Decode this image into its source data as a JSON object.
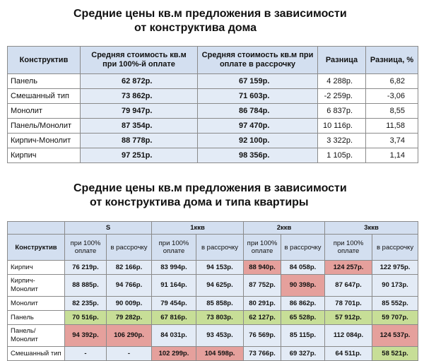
{
  "title1": {
    "line1": "Средние цены кв.м предложения в зависимости",
    "line2": "от конструктива дома"
  },
  "table1": {
    "headers": [
      "Конструктив",
      "Средняя стоимость кв.м при 100%-й оплате",
      "Средняя стоимость кв.м при оплате в рассрочку",
      "Разница",
      "Разница, %"
    ],
    "rows": [
      [
        "Панель",
        "62 872р.",
        "67 159р.",
        "4 288р.",
        "6,82"
      ],
      [
        "Смешанный тип",
        "73 862р.",
        "71 603р.",
        "-2 259р.",
        "-3,06"
      ],
      [
        "Монолит",
        "79 947р.",
        "86 784р.",
        "6 837р.",
        "8,55"
      ],
      [
        "Панель/Монолит",
        "87 354р.",
        "97 470р.",
        "10 116р.",
        "11,58"
      ],
      [
        "Кирпич-Монолит",
        "88 778р.",
        "92 100р.",
        "3 322р.",
        "3,74"
      ],
      [
        "Кирпич",
        "97 251р.",
        "98 356р.",
        "1 105р.",
        "1,14"
      ]
    ]
  },
  "title2": {
    "line1": "Средние цены кв.м предложения в зависимости",
    "line2": "от конструктива дома и типа квартиры"
  },
  "table2": {
    "groups": [
      "S",
      "1ккв",
      "2ккв",
      "3ккв"
    ],
    "first_header": "Конструктив",
    "subheaders": [
      "при 100% оплате",
      "в рассрочку",
      "при 100% оплате",
      "в рассрочку",
      "при 100% оплате",
      "в рассрочку",
      "при 100% оплате",
      "в рассрочку"
    ],
    "rows": [
      [
        "Кирпич",
        "76 219р.",
        "82 166р.",
        "83 994р.",
        "94 153р.",
        "88 940р.",
        "84 058р.",
        "124 257р.",
        "122 975р."
      ],
      [
        "Кирпич-Монолит",
        "88 885р.",
        "94 766р.",
        "91 164р.",
        "94 625р.",
        "87 752р.",
        "90 398р.",
        "87 647р.",
        "90 173р."
      ],
      [
        "Монолит",
        "82 235р.",
        "90 009р.",
        "79 454р.",
        "85 858р.",
        "80 291р.",
        "86 862р.",
        "78 701р.",
        "85 552р."
      ],
      [
        "Панель",
        "70 516р.",
        "79 282р.",
        "67 816р.",
        "73 803р.",
        "62 127р.",
        "65 528р.",
        "57 912р.",
        "59 707р."
      ],
      [
        "Панель/ Монолит",
        "94 392р.",
        "106 290р.",
        "84 031р.",
        "93 453р.",
        "76 569р.",
        "85 115р.",
        "112 084р.",
        "124 537р."
      ],
      [
        "Смешанный тип",
        "-",
        "-",
        "102 299р.",
        "104 598р.",
        "73 766р.",
        "69 327р.",
        "64 511р.",
        "58 521р."
      ]
    ],
    "highlight": {
      "red": [
        [
          0,
          5
        ],
        [
          0,
          7
        ],
        [
          1,
          6
        ],
        [
          4,
          1
        ],
        [
          4,
          2
        ],
        [
          4,
          8
        ],
        [
          5,
          3
        ],
        [
          5,
          4
        ]
      ],
      "green": [
        [
          3,
          1
        ],
        [
          3,
          2
        ],
        [
          3,
          3
        ],
        [
          3,
          4
        ],
        [
          3,
          5
        ],
        [
          3,
          6
        ],
        [
          3,
          7
        ],
        [
          3,
          8
        ],
        [
          5,
          8
        ]
      ]
    },
    "colors": {
      "red": "#e5a09c",
      "green": "#c7de97",
      "header": "#d3dff0",
      "cell": "#e3ebf6"
    }
  }
}
